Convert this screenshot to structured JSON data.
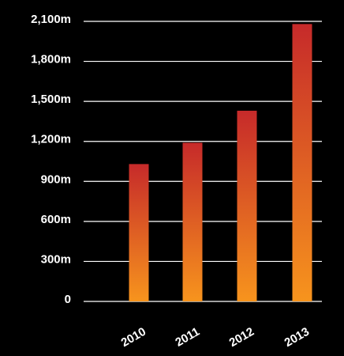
{
  "chart_data": {
    "type": "bar",
    "title": "",
    "xlabel": "",
    "ylabel": "",
    "categories": [
      "2010",
      "2011",
      "2012",
      "2013"
    ],
    "values": [
      1030,
      1190,
      1430,
      2080
    ],
    "ylim": [
      0,
      2100
    ],
    "yticks": [
      0,
      300,
      600,
      900,
      1200,
      1500,
      1800,
      2100
    ],
    "ytick_labels": [
      "0",
      "300m",
      "600m",
      "900m",
      "1,200m",
      "1,500m",
      "1,800m",
      "2,100m"
    ],
    "grid": true,
    "colors": {
      "bar_top": "#c62a2a",
      "bar_bottom": "#f7941d",
      "background": "#000000",
      "text": "#ffffff"
    }
  }
}
